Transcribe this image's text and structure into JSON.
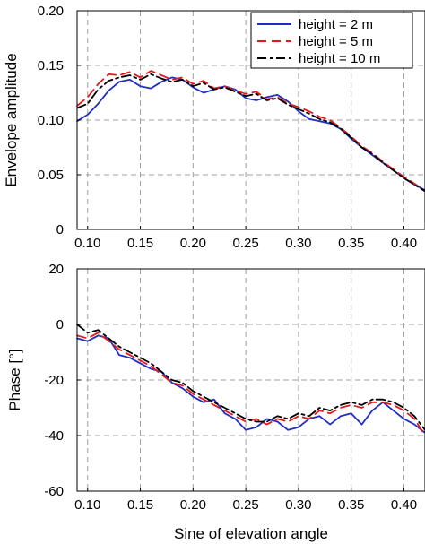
{
  "chart_data": [
    {
      "type": "line",
      "ylabel": "Envelope amplitude",
      "xlim": [
        0.09,
        0.42
      ],
      "ylim": [
        0,
        0.2
      ],
      "grid": true,
      "legend_position": "top-right",
      "xticks": [
        "0.10",
        "0.15",
        "0.20",
        "0.25",
        "0.30",
        "0.35",
        "0.40"
      ],
      "yticks": [
        "0",
        "0.05",
        "0.10",
        "0.15",
        "0.20"
      ],
      "series": [
        {
          "name": "height = 2 m",
          "color": "#1f2fbf",
          "dash": "solid",
          "x": [
            0.09,
            0.1,
            0.11,
            0.12,
            0.13,
            0.14,
            0.15,
            0.16,
            0.17,
            0.18,
            0.19,
            0.2,
            0.21,
            0.22,
            0.23,
            0.24,
            0.25,
            0.26,
            0.27,
            0.28,
            0.29,
            0.3,
            0.31,
            0.32,
            0.33,
            0.34,
            0.35,
            0.36,
            0.37,
            0.38,
            0.39,
            0.4,
            0.41,
            0.42
          ],
          "y": [
            0.099,
            0.105,
            0.115,
            0.127,
            0.135,
            0.137,
            0.131,
            0.129,
            0.135,
            0.139,
            0.137,
            0.13,
            0.125,
            0.128,
            0.131,
            0.128,
            0.12,
            0.118,
            0.121,
            0.123,
            0.117,
            0.108,
            0.101,
            0.099,
            0.097,
            0.092,
            0.083,
            0.075,
            0.068,
            0.061,
            0.054,
            0.047,
            0.041,
            0.036
          ]
        },
        {
          "name": "height = 5 m",
          "color": "#e31a1c",
          "dash": "dashed",
          "x": [
            0.09,
            0.1,
            0.11,
            0.12,
            0.13,
            0.14,
            0.15,
            0.16,
            0.17,
            0.18,
            0.19,
            0.2,
            0.21,
            0.22,
            0.23,
            0.24,
            0.25,
            0.26,
            0.27,
            0.28,
            0.29,
            0.3,
            0.31,
            0.32,
            0.33,
            0.34,
            0.35,
            0.36,
            0.37,
            0.38,
            0.39,
            0.4,
            0.41,
            0.42
          ],
          "y": [
            0.113,
            0.121,
            0.133,
            0.142,
            0.141,
            0.144,
            0.139,
            0.145,
            0.141,
            0.137,
            0.139,
            0.133,
            0.136,
            0.129,
            0.131,
            0.127,
            0.124,
            0.126,
            0.119,
            0.121,
            0.115,
            0.112,
            0.108,
            0.103,
            0.1,
            0.093,
            0.085,
            0.076,
            0.07,
            0.062,
            0.055,
            0.048,
            0.042,
            0.035
          ]
        },
        {
          "name": "height = 10 m",
          "color": "#000000",
          "dash": "dashdot",
          "x": [
            0.09,
            0.1,
            0.11,
            0.12,
            0.13,
            0.14,
            0.15,
            0.16,
            0.17,
            0.18,
            0.19,
            0.2,
            0.21,
            0.22,
            0.23,
            0.24,
            0.25,
            0.26,
            0.27,
            0.28,
            0.29,
            0.3,
            0.31,
            0.32,
            0.33,
            0.34,
            0.35,
            0.36,
            0.37,
            0.38,
            0.39,
            0.4,
            0.41,
            0.42
          ],
          "y": [
            0.111,
            0.115,
            0.128,
            0.136,
            0.139,
            0.141,
            0.137,
            0.142,
            0.138,
            0.135,
            0.137,
            0.131,
            0.134,
            0.128,
            0.13,
            0.126,
            0.122,
            0.124,
            0.118,
            0.12,
            0.114,
            0.11,
            0.106,
            0.101,
            0.098,
            0.092,
            0.084,
            0.075,
            0.069,
            0.061,
            0.054,
            0.047,
            0.041,
            0.035
          ]
        }
      ]
    },
    {
      "type": "line",
      "xlabel": "Sine of elevation angle",
      "ylabel": "Phase [°]",
      "xlim": [
        0.09,
        0.42
      ],
      "ylim": [
        -60,
        20
      ],
      "grid": true,
      "xticks": [
        "0.10",
        "0.15",
        "0.20",
        "0.25",
        "0.30",
        "0.35",
        "0.40"
      ],
      "yticks": [
        "-60",
        "-40",
        "-20",
        "0",
        "20"
      ],
      "series": [
        {
          "name": "height = 2 m",
          "color": "#1f2fbf",
          "dash": "solid",
          "x": [
            0.09,
            0.1,
            0.11,
            0.12,
            0.13,
            0.14,
            0.15,
            0.16,
            0.17,
            0.18,
            0.19,
            0.2,
            0.21,
            0.22,
            0.23,
            0.24,
            0.25,
            0.26,
            0.27,
            0.28,
            0.29,
            0.3,
            0.31,
            0.32,
            0.33,
            0.34,
            0.35,
            0.36,
            0.37,
            0.38,
            0.39,
            0.4,
            0.41,
            0.42
          ],
          "y": [
            -5,
            -6,
            -4,
            -5,
            -11,
            -12,
            -14,
            -16,
            -17,
            -21,
            -23,
            -26,
            -28,
            -27,
            -32,
            -34,
            -38,
            -37,
            -34,
            -35,
            -38,
            -37,
            -34,
            -33,
            -36,
            -33,
            -32,
            -36,
            -31,
            -28,
            -31,
            -34,
            -36,
            -39
          ]
        },
        {
          "name": "height = 5 m",
          "color": "#e31a1c",
          "dash": "dashed",
          "x": [
            0.09,
            0.1,
            0.11,
            0.12,
            0.13,
            0.14,
            0.15,
            0.16,
            0.17,
            0.18,
            0.19,
            0.2,
            0.21,
            0.22,
            0.23,
            0.24,
            0.25,
            0.26,
            0.27,
            0.28,
            0.29,
            0.3,
            0.31,
            0.32,
            0.33,
            0.34,
            0.35,
            0.36,
            0.37,
            0.38,
            0.39,
            0.4,
            0.41,
            0.42
          ],
          "y": [
            -4,
            -5,
            -3,
            -6,
            -9,
            -11,
            -13,
            -15,
            -18,
            -21,
            -22,
            -25,
            -27,
            -29,
            -31,
            -33,
            -35,
            -34,
            -36,
            -34,
            -35,
            -33,
            -34,
            -31,
            -32,
            -30,
            -29,
            -30,
            -28,
            -28,
            -29,
            -31,
            -34,
            -40
          ]
        },
        {
          "name": "height = 10 m",
          "color": "#000000",
          "dash": "dashdot",
          "x": [
            0.09,
            0.1,
            0.11,
            0.12,
            0.13,
            0.14,
            0.15,
            0.16,
            0.17,
            0.18,
            0.19,
            0.2,
            0.21,
            0.22,
            0.23,
            0.24,
            0.25,
            0.26,
            0.27,
            0.28,
            0.29,
            0.3,
            0.31,
            0.32,
            0.33,
            0.34,
            0.35,
            0.36,
            0.37,
            0.38,
            0.39,
            0.4,
            0.41,
            0.42
          ],
          "y": [
            0,
            -3,
            -2,
            -5,
            -8,
            -10,
            -12,
            -14,
            -17,
            -20,
            -21,
            -24,
            -26,
            -28,
            -30,
            -32,
            -34,
            -35,
            -35,
            -33,
            -34,
            -32,
            -33,
            -30,
            -31,
            -29,
            -28,
            -29,
            -27,
            -27,
            -28,
            -30,
            -33,
            -38
          ]
        }
      ]
    }
  ]
}
